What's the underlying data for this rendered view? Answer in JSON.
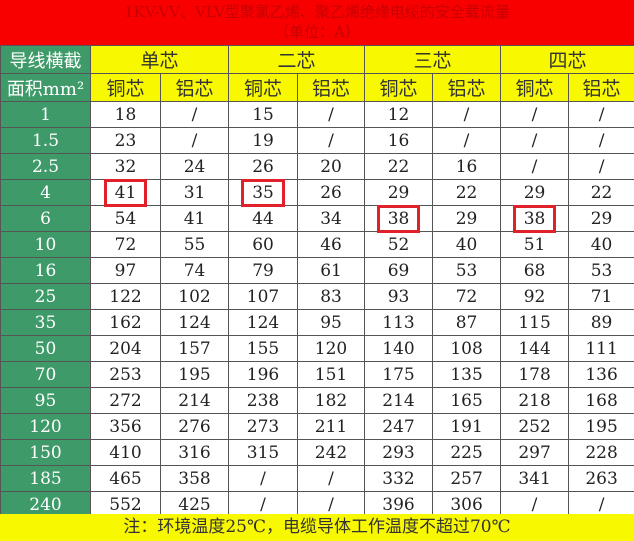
{
  "title": {
    "line1": "1KV-VV、VLV型聚氯乙烯、聚乙烯绝缘电缆的安全载流量",
    "line2": "（单位：A）"
  },
  "header": {
    "corner_top": "导线横截",
    "corner_bottom": "面积mm²",
    "groups": [
      "单芯",
      "二芯",
      "三芯",
      "四芯"
    ],
    "sub": [
      "铜芯",
      "铝芯"
    ]
  },
  "rows": [
    [
      "1",
      "18",
      "/",
      "15",
      "/",
      "12",
      "/",
      "/",
      "/"
    ],
    [
      "1.5",
      "23",
      "/",
      "19",
      "/",
      "16",
      "/",
      "/",
      "/"
    ],
    [
      "2.5",
      "32",
      "24",
      "26",
      "20",
      "22",
      "16",
      "/",
      "/"
    ],
    [
      "4",
      "41",
      "31",
      "35",
      "26",
      "29",
      "22",
      "29",
      "22"
    ],
    [
      "6",
      "54",
      "41",
      "44",
      "34",
      "38",
      "29",
      "38",
      "29"
    ],
    [
      "10",
      "72",
      "55",
      "60",
      "46",
      "52",
      "40",
      "51",
      "40"
    ],
    [
      "16",
      "97",
      "74",
      "79",
      "61",
      "69",
      "53",
      "68",
      "53"
    ],
    [
      "25",
      "122",
      "102",
      "107",
      "83",
      "93",
      "72",
      "92",
      "71"
    ],
    [
      "35",
      "162",
      "124",
      "124",
      "95",
      "113",
      "87",
      "115",
      "89"
    ],
    [
      "50",
      "204",
      "157",
      "155",
      "120",
      "140",
      "108",
      "144",
      "111"
    ],
    [
      "70",
      "253",
      "195",
      "196",
      "151",
      "175",
      "135",
      "178",
      "136"
    ],
    [
      "95",
      "272",
      "214",
      "238",
      "182",
      "214",
      "165",
      "218",
      "168"
    ],
    [
      "120",
      "356",
      "276",
      "273",
      "211",
      "247",
      "191",
      "252",
      "195"
    ],
    [
      "150",
      "410",
      "316",
      "315",
      "242",
      "293",
      "225",
      "297",
      "228"
    ],
    [
      "185",
      "465",
      "358",
      "/",
      "/",
      "332",
      "257",
      "341",
      "263"
    ],
    [
      "240",
      "552",
      "425",
      "/",
      "/",
      "396",
      "306",
      "/",
      "/"
    ]
  ],
  "highlights": [
    [
      3,
      1
    ],
    [
      3,
      3
    ],
    [
      4,
      5
    ],
    [
      4,
      7
    ]
  ],
  "highlight_color": "#e0202a",
  "footer": "注：环境温度25℃，电缆导体工作温度不超过70℃"
}
